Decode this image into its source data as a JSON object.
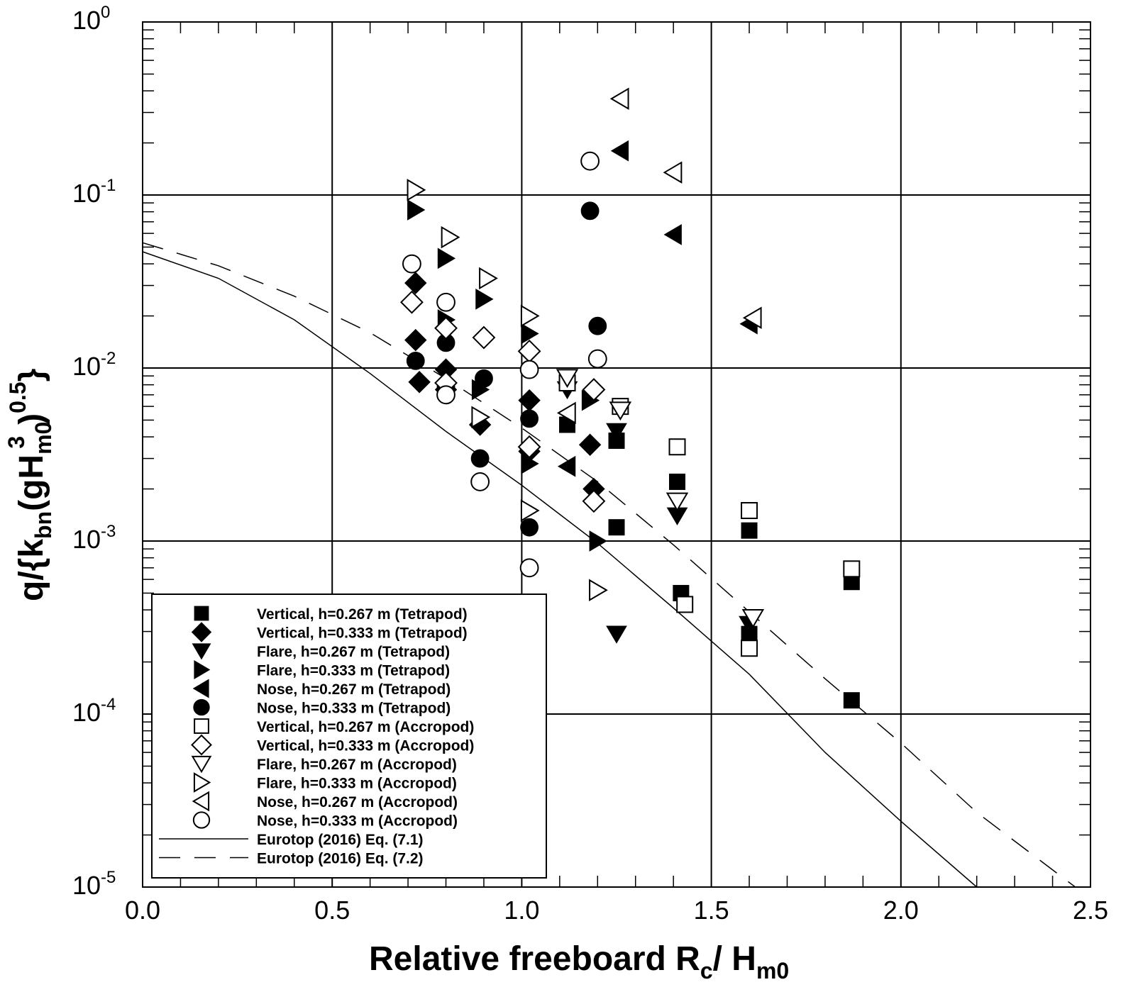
{
  "chart_data": {
    "type": "scatter",
    "xlabel_main": "Relative freeboard R",
    "xlabel_sub_c": "c",
    "xlabel_slash": "/ H",
    "xlabel_sub_m0": "m0",
    "ylabel_parts": {
      "q": "q/{k",
      "bn": "bn",
      "g": "(gH",
      "m0": "m0",
      "cube": "3",
      "close": ")",
      "half": "0.5",
      "brace": "}"
    },
    "xlim": [
      0.0,
      2.5
    ],
    "ylim": [
      1e-05,
      1
    ],
    "yscale": "log",
    "x_ticks": [
      {
        "value": 0.0,
        "label": "0.0"
      },
      {
        "value": 0.5,
        "label": "0.5"
      },
      {
        "value": 1.0,
        "label": "1.0"
      },
      {
        "value": 1.5,
        "label": "1.5"
      },
      {
        "value": 2.0,
        "label": "2.0"
      },
      {
        "value": 2.5,
        "label": "2.5"
      }
    ],
    "y_ticks": [
      {
        "exp": 0,
        "base": "10",
        "sup": "0"
      },
      {
        "exp": -1,
        "base": "10",
        "sup": "-1"
      },
      {
        "exp": -2,
        "base": "10",
        "sup": "-2"
      },
      {
        "exp": -3,
        "base": "10",
        "sup": "-3"
      },
      {
        "exp": -4,
        "base": "10",
        "sup": "-4"
      },
      {
        "exp": -5,
        "base": "10",
        "sup": "-5"
      }
    ],
    "grid": true,
    "legend_position": "bottom-left",
    "series": [
      {
        "name": "Vertical, h=0.267 m (Tetrapod)",
        "marker": "square",
        "filled": true,
        "points": [
          [
            1.12,
            0.0047
          ],
          [
            1.25,
            0.0038
          ],
          [
            1.25,
            0.0012
          ],
          [
            1.41,
            0.0022
          ],
          [
            1.42,
            0.0005
          ],
          [
            1.6,
            0.00115
          ],
          [
            1.6,
            0.00029
          ],
          [
            1.87,
            0.00058
          ],
          [
            1.87,
            0.00012
          ]
        ]
      },
      {
        "name": "Vertical, h=0.333 m (Tetrapod)",
        "marker": "diamond",
        "filled": true,
        "points": [
          [
            0.72,
            0.031
          ],
          [
            0.72,
            0.0145
          ],
          [
            0.73,
            0.0083
          ],
          [
            0.8,
            0.0098
          ],
          [
            0.8,
            0.0075
          ],
          [
            0.89,
            0.0047
          ],
          [
            1.02,
            0.0065
          ],
          [
            1.02,
            0.0033
          ],
          [
            1.18,
            0.0036
          ],
          [
            1.19,
            0.002
          ]
        ]
      },
      {
        "name": "Flare, h=0.267 m (Tetrapod)",
        "marker": "triangle-down",
        "filled": true,
        "points": [
          [
            1.12,
            0.0075
          ],
          [
            1.25,
            0.0043
          ],
          [
            1.25,
            0.00029
          ],
          [
            1.41,
            0.0014
          ],
          [
            1.6,
            0.00033
          ]
        ]
      },
      {
        "name": "Flare, h=0.333 m (Tetrapod)",
        "marker": "triangle-right",
        "filled": true,
        "points": [
          [
            0.72,
            0.082
          ],
          [
            0.8,
            0.043
          ],
          [
            0.8,
            0.019
          ],
          [
            0.9,
            0.025
          ],
          [
            0.89,
            0.0075
          ],
          [
            1.02,
            0.0158
          ],
          [
            1.02,
            0.0028
          ],
          [
            1.18,
            0.0065
          ],
          [
            1.2,
            0.001
          ]
        ]
      },
      {
        "name": "Nose, h=0.267 m (Tetrapod)",
        "marker": "triangle-left",
        "filled": true,
        "points": [
          [
            1.26,
            0.18
          ],
          [
            1.4,
            0.059
          ],
          [
            1.12,
            0.0027
          ],
          [
            1.6,
            0.018
          ]
        ]
      },
      {
        "name": "Nose, h=0.333 m (Tetrapod)",
        "marker": "circle",
        "filled": true,
        "points": [
          [
            1.18,
            0.081
          ],
          [
            1.2,
            0.0175
          ],
          [
            0.72,
            0.011
          ],
          [
            0.8,
            0.014
          ],
          [
            0.8,
            0.0078
          ],
          [
            0.9,
            0.0087
          ],
          [
            0.89,
            0.003
          ],
          [
            1.02,
            0.0051
          ],
          [
            1.02,
            0.0012
          ]
        ]
      },
      {
        "name": "Vertical, h=0.267 m (Accropod)",
        "marker": "square",
        "filled": false,
        "points": [
          [
            1.12,
            0.0082
          ],
          [
            1.26,
            0.006
          ],
          [
            1.41,
            0.0035
          ],
          [
            1.43,
            0.00043
          ],
          [
            1.6,
            0.0015
          ],
          [
            1.6,
            0.00024
          ],
          [
            1.87,
            0.00069
          ]
        ]
      },
      {
        "name": "Vertical, h=0.333 m (Accropod)",
        "marker": "diamond",
        "filled": false,
        "points": [
          [
            0.71,
            0.024
          ],
          [
            0.8,
            0.017
          ],
          [
            0.9,
            0.015
          ],
          [
            1.02,
            0.0125
          ],
          [
            1.02,
            0.0035
          ],
          [
            1.19,
            0.0075
          ],
          [
            1.19,
            0.0017
          ],
          [
            0.8,
            0.0082
          ]
        ]
      },
      {
        "name": "Flare, h=0.267 m (Accropod)",
        "marker": "triangle-down",
        "filled": false,
        "points": [
          [
            1.12,
            0.0088
          ],
          [
            1.26,
            0.0057
          ],
          [
            1.41,
            0.0017
          ],
          [
            1.61,
            0.00036
          ]
        ]
      },
      {
        "name": "Flare, h=0.333 m (Accropod)",
        "marker": "triangle-right",
        "filled": false,
        "points": [
          [
            0.72,
            0.107
          ],
          [
            0.81,
            0.057
          ],
          [
            0.91,
            0.033
          ],
          [
            1.02,
            0.02
          ],
          [
            1.02,
            0.0015
          ],
          [
            1.2,
            0.00052
          ],
          [
            0.89,
            0.0052
          ]
        ]
      },
      {
        "name": "Nose, h=0.267 m (Accropod)",
        "marker": "triangle-left",
        "filled": false,
        "points": [
          [
            1.26,
            0.36
          ],
          [
            1.4,
            0.135
          ],
          [
            1.61,
            0.0195
          ],
          [
            1.12,
            0.0055
          ]
        ]
      },
      {
        "name": "Nose, h=0.333 m (Accropod)",
        "marker": "circle",
        "filled": false,
        "points": [
          [
            1.18,
            0.157
          ],
          [
            0.71,
            0.04
          ],
          [
            0.8,
            0.024
          ],
          [
            1.02,
            0.0098
          ],
          [
            1.2,
            0.0113
          ],
          [
            0.8,
            0.007
          ],
          [
            0.89,
            0.0022
          ],
          [
            1.02,
            0.0007
          ]
        ]
      }
    ],
    "lines": [
      {
        "name": "Eurotop (2016) Eq. (7.1)",
        "style": "solid",
        "points": [
          [
            0.0,
            0.047
          ],
          [
            0.2,
            0.033
          ],
          [
            0.4,
            0.019
          ],
          [
            0.6,
            0.0093
          ],
          [
            0.8,
            0.0043
          ],
          [
            1.0,
            0.0021
          ],
          [
            1.2,
            0.00097
          ],
          [
            1.4,
            0.00041
          ],
          [
            1.6,
            0.00017
          ],
          [
            1.8,
            6e-05
          ],
          [
            2.0,
            2.4e-05
          ],
          [
            2.2,
            1e-05
          ]
        ]
      },
      {
        "name": "Eurotop (2016) Eq. (7.2)",
        "style": "dashed",
        "points": [
          [
            0.0,
            0.053
          ],
          [
            0.2,
            0.039
          ],
          [
            0.4,
            0.026
          ],
          [
            0.6,
            0.016
          ],
          [
            0.8,
            0.0087
          ],
          [
            1.0,
            0.0045
          ],
          [
            1.2,
            0.0022
          ],
          [
            1.4,
            0.00095
          ],
          [
            1.6,
            0.00039
          ],
          [
            1.8,
            0.00016
          ],
          [
            2.0,
            6.8e-05
          ],
          [
            2.2,
            2.7e-05
          ],
          [
            2.46,
            1e-05
          ]
        ]
      }
    ]
  }
}
